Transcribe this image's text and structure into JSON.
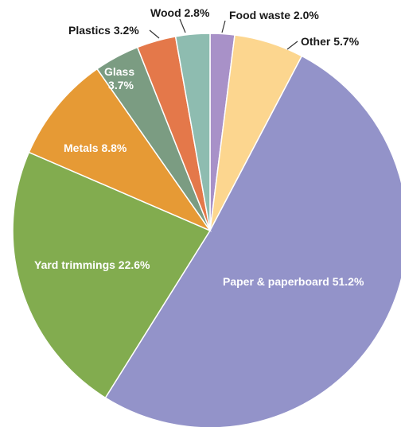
{
  "chart_data": {
    "type": "pie",
    "title": "",
    "start_angle_deg": 0,
    "direction": "clockwise",
    "slices": [
      {
        "label": "Food waste",
        "value": 2.0,
        "color": "#a891c8",
        "text": "Food waste 2.0%",
        "placement": "outside"
      },
      {
        "label": "Other",
        "value": 5.7,
        "color": "#fcd68f",
        "text": "Other 5.7%",
        "placement": "outside"
      },
      {
        "label": "Paper & paperboard",
        "value": 51.2,
        "color": "#9393c9",
        "text": "Paper & paperboard 51.2%",
        "placement": "inside"
      },
      {
        "label": "Yard trimmings",
        "value": 22.6,
        "color": "#82ac4f",
        "text": "Yard trimmings 22.6%",
        "placement": "inside"
      },
      {
        "label": "Metals",
        "value": 8.8,
        "color": "#e69a35",
        "text": "Metals 8.8%",
        "placement": "inside"
      },
      {
        "label": "Glass",
        "value": 3.7,
        "color": "#7b9c82",
        "text": "Glass\n3.7%",
        "placement": "inside"
      },
      {
        "label": "Plastics",
        "value": 3.2,
        "color": "#e4784a",
        "text": "Plastics 3.2%",
        "placement": "outside"
      },
      {
        "label": "Wood",
        "value": 2.8,
        "color": "#8ebcb0",
        "text": "Wood 2.8%",
        "placement": "outside"
      }
    ]
  }
}
